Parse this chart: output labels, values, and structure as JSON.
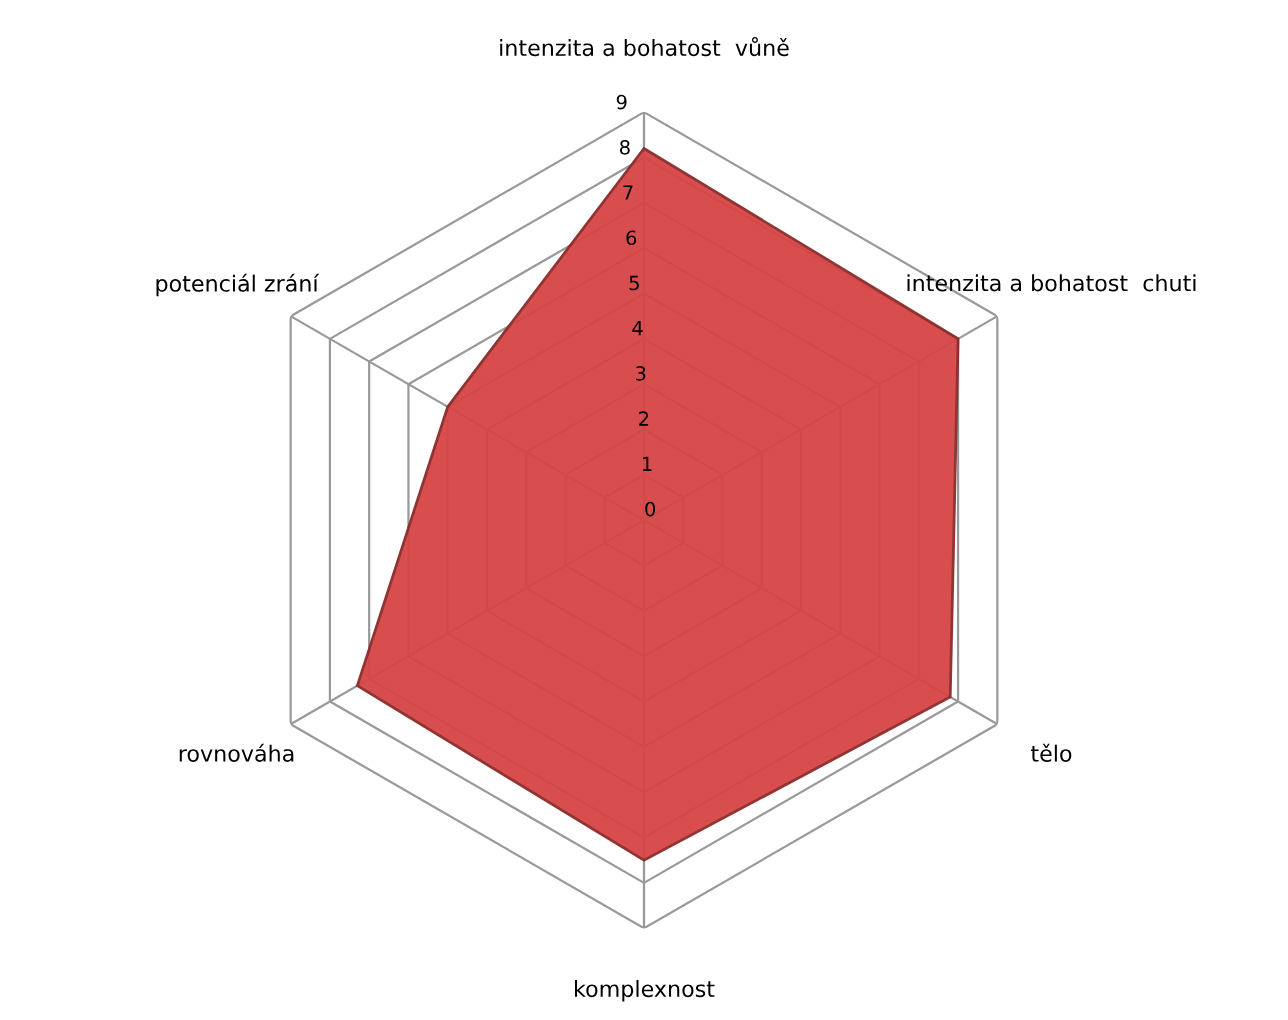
{
  "chart_data": {
    "type": "radar",
    "categories": [
      "intenzita a bohatost  vůně",
      "intenzita a bohatost  chuti",
      "tělo",
      "komplexnost",
      "rovnováha",
      "potenciál zrání"
    ],
    "series": [
      {
        "color": "#d64545",
        "values": [
          8.2,
          8.0,
          7.8,
          7.5,
          7.3,
          5.0
        ]
      }
    ],
    "ylim": [
      0,
      9
    ],
    "yticks": [
      0,
      1,
      2,
      3,
      4,
      5,
      6,
      7,
      8,
      9
    ],
    "grid": true,
    "legend": false
  }
}
